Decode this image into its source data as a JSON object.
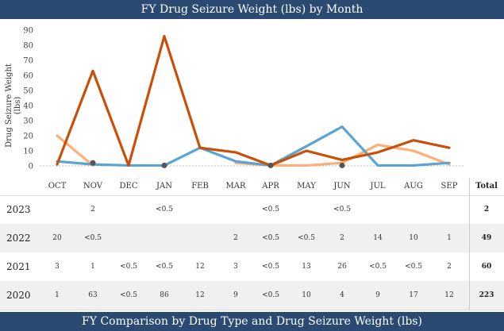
{
  "header": {
    "title": "FY Drug Seizure Weight (lbs) by Month"
  },
  "footer": {
    "title": "FY Comparison by Drug Type and Drug Seizure Weight (lbs)"
  },
  "table": {
    "total_label": "Total",
    "rows": [
      {
        "year": "2023",
        "cells": [
          "",
          "2",
          "",
          "<0.5",
          "",
          "",
          "<0.5",
          "",
          "<0.5",
          "",
          "",
          ""
        ],
        "total": "2"
      },
      {
        "year": "2022",
        "cells": [
          "20",
          "<0.5",
          "",
          "",
          "",
          "2",
          "<0.5",
          "<0.5",
          "2",
          "14",
          "10",
          "1"
        ],
        "total": "49"
      },
      {
        "year": "2021",
        "cells": [
          "3",
          "1",
          "<0.5",
          "<0.5",
          "12",
          "3",
          "<0.5",
          "13",
          "26",
          "<0.5",
          "<0.5",
          "2"
        ],
        "total": "60"
      },
      {
        "year": "2020",
        "cells": [
          "1",
          "63",
          "<0.5",
          "86",
          "12",
          "9",
          "<0.5",
          "10",
          "4",
          "9",
          "17",
          "12"
        ],
        "total": "223"
      }
    ]
  },
  "chart_data": {
    "type": "line",
    "title": "FY Drug Seizure Weight (lbs) by Month",
    "xlabel": "",
    "ylabel": "Drug Seizure Weight (lbs)",
    "ylim": [
      0,
      90
    ],
    "yticks": [
      0,
      10,
      20,
      30,
      40,
      50,
      60,
      70,
      80,
      90
    ],
    "grid": false,
    "categories": [
      "OCT",
      "NOV",
      "DEC",
      "JAN",
      "FEB",
      "MAR",
      "APR",
      "MAY",
      "JUN",
      "JUL",
      "AUG",
      "SEP"
    ],
    "series": [
      {
        "name": "2023",
        "color": "#555555",
        "style": "markers",
        "values": [
          null,
          2,
          null,
          0.3,
          null,
          null,
          0.3,
          null,
          0.3,
          null,
          null,
          null
        ]
      },
      {
        "name": "2022",
        "color": "#fbb07a",
        "style": "line",
        "values": [
          20,
          0.3,
          null,
          null,
          null,
          2,
          0.3,
          0.3,
          2,
          14,
          10,
          1
        ]
      },
      {
        "name": "2021",
        "color": "#5ba3d0",
        "style": "line",
        "values": [
          3,
          1,
          0.3,
          0.3,
          12,
          3,
          0.3,
          13,
          26,
          0.3,
          0.3,
          2
        ]
      },
      {
        "name": "2020",
        "color": "#c8500a",
        "style": "line",
        "values": [
          1,
          63,
          0.3,
          86,
          12,
          9,
          0.3,
          10,
          4,
          9,
          17,
          12
        ]
      }
    ]
  }
}
